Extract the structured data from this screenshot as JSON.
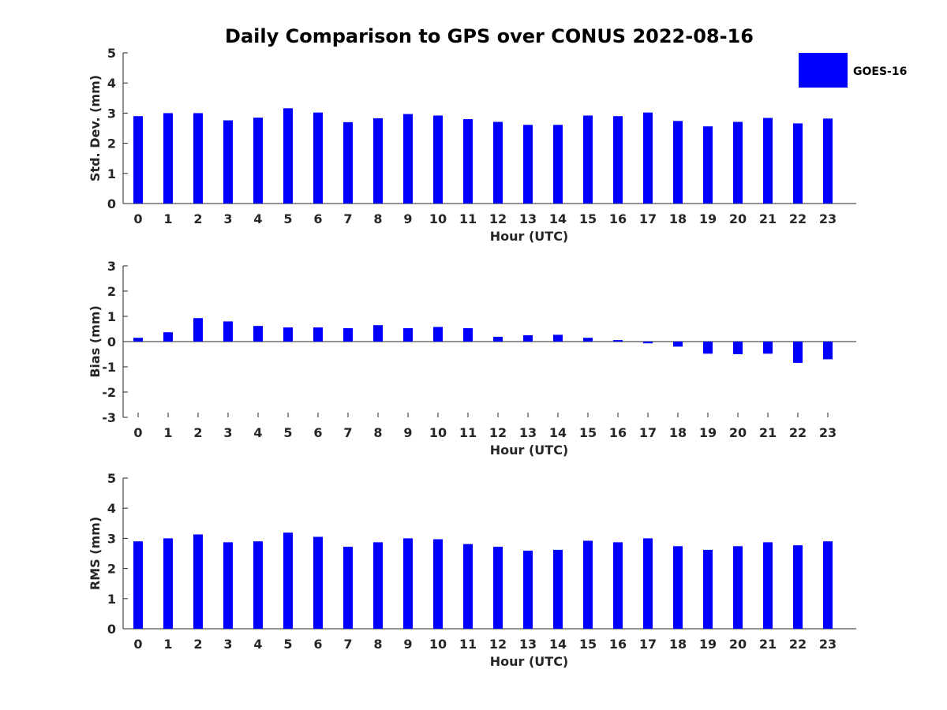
{
  "title": "Daily Comparison to GPS over CONUS 2022-08-16",
  "legend": {
    "label": "GOES-16",
    "color": "#0000ff"
  },
  "chart_data": [
    {
      "type": "bar",
      "panel": "std",
      "xlabel": "Hour (UTC)",
      "ylabel": "Std. Dev. (mm)",
      "ylim": [
        0,
        5
      ],
      "yticks": [
        0,
        1,
        2,
        3,
        4,
        5
      ],
      "categories": [
        "0",
        "1",
        "2",
        "3",
        "4",
        "5",
        "6",
        "7",
        "8",
        "9",
        "10",
        "11",
        "12",
        "13",
        "14",
        "15",
        "16",
        "17",
        "18",
        "19",
        "20",
        "21",
        "22",
        "23"
      ],
      "series": [
        {
          "name": "GOES-16",
          "values": [
            2.9,
            3.0,
            3.0,
            2.76,
            2.85,
            3.16,
            3.02,
            2.7,
            2.83,
            2.97,
            2.92,
            2.8,
            2.71,
            2.61,
            2.61,
            2.92,
            2.9,
            3.02,
            2.74,
            2.56,
            2.71,
            2.84,
            2.66,
            2.82
          ]
        }
      ]
    },
    {
      "type": "bar",
      "panel": "bias",
      "xlabel": "Hour (UTC)",
      "ylabel": "Bias (mm)",
      "ylim": [
        -3,
        3
      ],
      "yticks": [
        -3,
        -2,
        -1,
        0,
        1,
        2,
        3
      ],
      "categories": [
        "0",
        "1",
        "2",
        "3",
        "4",
        "5",
        "6",
        "7",
        "8",
        "9",
        "10",
        "11",
        "12",
        "13",
        "14",
        "15",
        "16",
        "17",
        "18",
        "19",
        "20",
        "21",
        "22",
        "23"
      ],
      "series": [
        {
          "name": "GOES-16",
          "values": [
            0.15,
            0.37,
            0.93,
            0.8,
            0.62,
            0.56,
            0.56,
            0.53,
            0.65,
            0.53,
            0.58,
            0.53,
            0.19,
            0.25,
            0.27,
            0.15,
            0.06,
            -0.07,
            -0.2,
            -0.48,
            -0.5,
            -0.48,
            -0.84,
            -0.7
          ]
        }
      ]
    },
    {
      "type": "bar",
      "panel": "rms",
      "xlabel": "Hour (UTC)",
      "ylabel": "RMS (mm)",
      "ylim": [
        0,
        5
      ],
      "yticks": [
        0,
        1,
        2,
        3,
        4,
        5
      ],
      "categories": [
        "0",
        "1",
        "2",
        "3",
        "4",
        "5",
        "6",
        "7",
        "8",
        "9",
        "10",
        "11",
        "12",
        "13",
        "14",
        "15",
        "16",
        "17",
        "18",
        "19",
        "20",
        "21",
        "22",
        "23"
      ],
      "series": [
        {
          "name": "GOES-16",
          "values": [
            2.9,
            3.0,
            3.13,
            2.87,
            2.9,
            3.19,
            3.05,
            2.72,
            2.87,
            3.0,
            2.97,
            2.81,
            2.72,
            2.59,
            2.62,
            2.92,
            2.87,
            3.0,
            2.74,
            2.62,
            2.74,
            2.87,
            2.77,
            2.9
          ]
        }
      ]
    }
  ]
}
